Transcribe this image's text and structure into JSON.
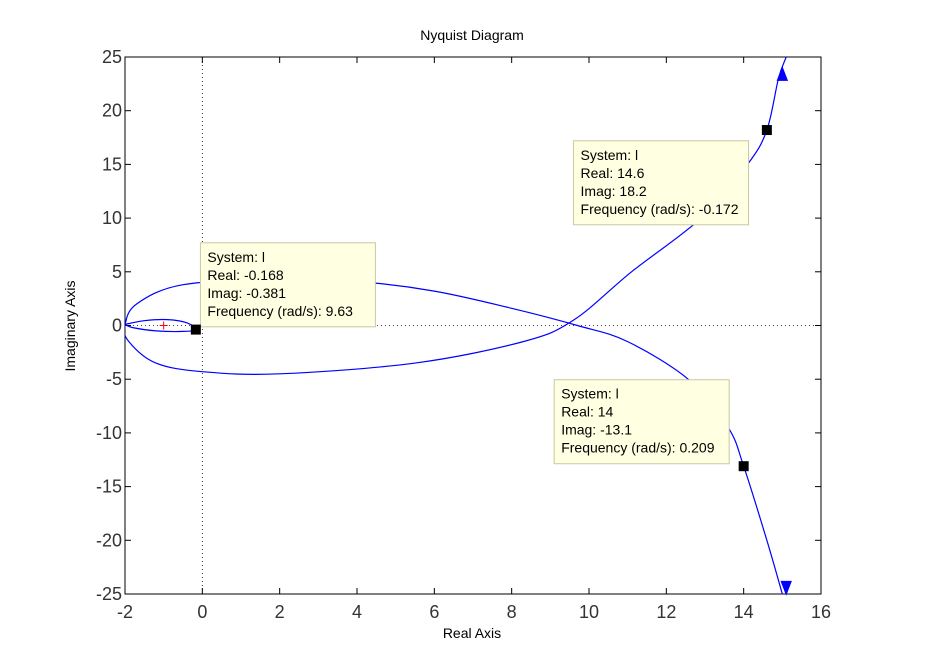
{
  "chart_data": {
    "type": "line",
    "title": "Nyquist Diagram",
    "xlabel": "Real Axis",
    "ylabel": "Imaginary Axis",
    "xlim": [
      -2,
      16
    ],
    "ylim": [
      -25,
      25
    ],
    "xticks": [
      -2,
      0,
      2,
      4,
      6,
      8,
      10,
      12,
      14,
      16
    ],
    "yticks": [
      -25,
      -20,
      -15,
      -10,
      -5,
      0,
      5,
      10,
      15,
      20,
      25
    ],
    "grid": false,
    "critical_point": {
      "x": -1,
      "y": 0
    },
    "colors": {
      "curve": "#0000ff",
      "critical": "#ff0000",
      "tip_bg": "#ffffe1",
      "tip_border": "#c8c8a0"
    },
    "series": [
      {
        "values": [
          [
            15.1,
            25
          ],
          [
            14.9,
            23
          ],
          [
            14.6,
            18.2
          ],
          [
            14.1,
            15
          ],
          [
            12.9,
            10
          ],
          [
            11.1,
            5
          ],
          [
            9.6,
            0.5
          ],
          [
            8.3,
            -1.5
          ],
          [
            5.5,
            -3.5
          ],
          [
            2.0,
            -4.5
          ],
          [
            0.0,
            -4.3
          ],
          [
            -1.2,
            -3.5
          ],
          [
            -1.9,
            -1.5
          ],
          [
            -2.0,
            0
          ],
          [
            -1.7,
            2
          ],
          [
            -0.5,
            3.8
          ],
          [
            2.0,
            4.3
          ],
          [
            4.0,
            4.1
          ],
          [
            6.0,
            3.2
          ],
          [
            8.0,
            1.6
          ],
          [
            9.7,
            0
          ],
          [
            11.0,
            -1.5
          ],
          [
            12.6,
            -5.1
          ],
          [
            13.6,
            -9.5
          ],
          [
            14.0,
            -13.1
          ],
          [
            14.6,
            -20
          ],
          [
            15.0,
            -25
          ]
        ]
      },
      {
        "values": [
          [
            -2.0,
            0.1
          ],
          [
            -1.5,
            0.45
          ],
          [
            -0.9,
            0.55
          ],
          [
            -0.4,
            0.25
          ],
          [
            -0.168,
            -0.381
          ],
          [
            -0.5,
            -0.55
          ],
          [
            -1.2,
            -0.5
          ],
          [
            -1.8,
            -0.2
          ],
          [
            -2.0,
            0.1
          ]
        ]
      }
    ],
    "arrows": [
      {
        "x": 15.0,
        "y": 23.2,
        "dir": "up"
      },
      {
        "x": 15.1,
        "y": -24.2,
        "dir": "down"
      }
    ],
    "annotations": [
      {
        "x": 14.6,
        "y": 18.2,
        "box_anchor": {
          "x": 9.6,
          "y": 17.2
        },
        "lines": [
          "System: l",
          "Real: 14.6",
          "Imag: 18.2",
          "Frequency (rad/s): -0.172"
        ]
      },
      {
        "x": -0.168,
        "y": -0.381,
        "box_anchor": {
          "x": -0.05,
          "y": 7.7
        },
        "lines": [
          "System: l",
          "Real: -0.168",
          "Imag: -0.381",
          "Frequency (rad/s): 9.63"
        ]
      },
      {
        "x": 14.0,
        "y": -13.1,
        "box_anchor": {
          "x": 9.1,
          "y": -5.05
        },
        "lines": [
          "System: l",
          "Real: 14",
          "Imag: -13.1",
          "Frequency (rad/s): 0.209"
        ]
      }
    ]
  }
}
